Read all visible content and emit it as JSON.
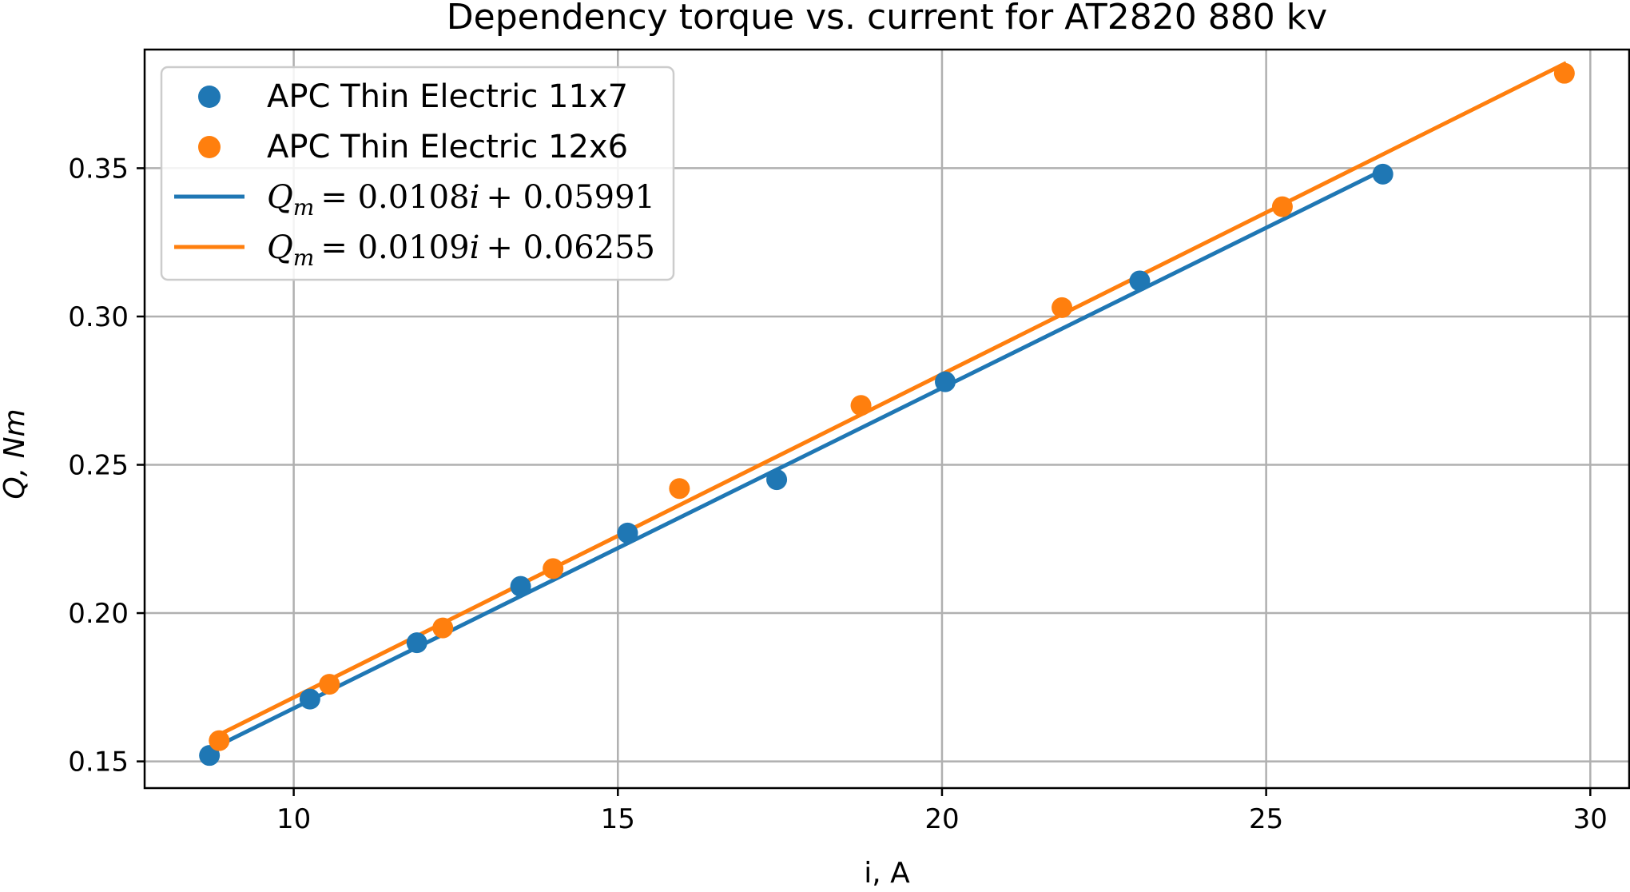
{
  "chart_data": {
    "type": "scatter",
    "title": "Dependency torque vs. current for AT2820 880 kv",
    "xlabel": "i, A",
    "ylabel": "Q, Nm",
    "xlim": [
      7.7,
      30.6
    ],
    "ylim": [
      0.141,
      0.39
    ],
    "xticks": [
      10,
      15,
      20,
      25,
      30
    ],
    "yticks": [
      0.15,
      0.2,
      0.25,
      0.3,
      0.35
    ],
    "xtick_labels": [
      "10",
      "15",
      "20",
      "25",
      "30"
    ],
    "ytick_labels": [
      "0.15",
      "0.20",
      "0.25",
      "0.30",
      "0.35"
    ],
    "grid": true,
    "legend_position": "upper-left",
    "series": [
      {
        "name": "APC Thin Electric 11x7",
        "kind": "scatter",
        "color": "#1f77b4",
        "x": [
          8.7,
          10.25,
          11.9,
          13.5,
          15.15,
          17.45,
          20.05,
          23.05,
          26.8
        ],
        "y": [
          0.152,
          0.171,
          0.19,
          0.209,
          0.227,
          0.245,
          0.278,
          0.312,
          0.348
        ]
      },
      {
        "name": "APC Thin Electric 12x6",
        "kind": "scatter",
        "color": "#ff7f0e",
        "x": [
          8.85,
          10.55,
          12.3,
          14.0,
          15.95,
          18.75,
          21.85,
          25.25,
          29.6
        ],
        "y": [
          0.157,
          0.176,
          0.195,
          0.215,
          0.242,
          0.27,
          0.303,
          0.337,
          0.382
        ]
      },
      {
        "name": "Q_m = 0.0108i + 0.05991",
        "kind": "line",
        "color": "#1f77b4",
        "slope": 0.0108,
        "intercept": 0.05991,
        "x_range": [
          8.7,
          26.8
        ]
      },
      {
        "name": "Q_m = 0.0109i + 0.06255",
        "kind": "line",
        "color": "#ff7f0e",
        "slope": 0.0109,
        "intercept": 0.06255,
        "x_range": [
          8.85,
          29.6
        ]
      }
    ],
    "legend": {
      "entry_1": "APC Thin Electric 11x7",
      "entry_2": "APC Thin Electric 12x6",
      "entry_3_lhs_base": "Q",
      "entry_3_lhs_sub": "m",
      "entry_3_rhs": "= 0.0108",
      "entry_3_var": "i",
      "entry_3_tail": "+ 0.05991",
      "entry_4_lhs_base": "Q",
      "entry_4_lhs_sub": "m",
      "entry_4_rhs": "= 0.0109",
      "entry_4_var": "i",
      "entry_4_tail": "+ 0.06255"
    }
  }
}
